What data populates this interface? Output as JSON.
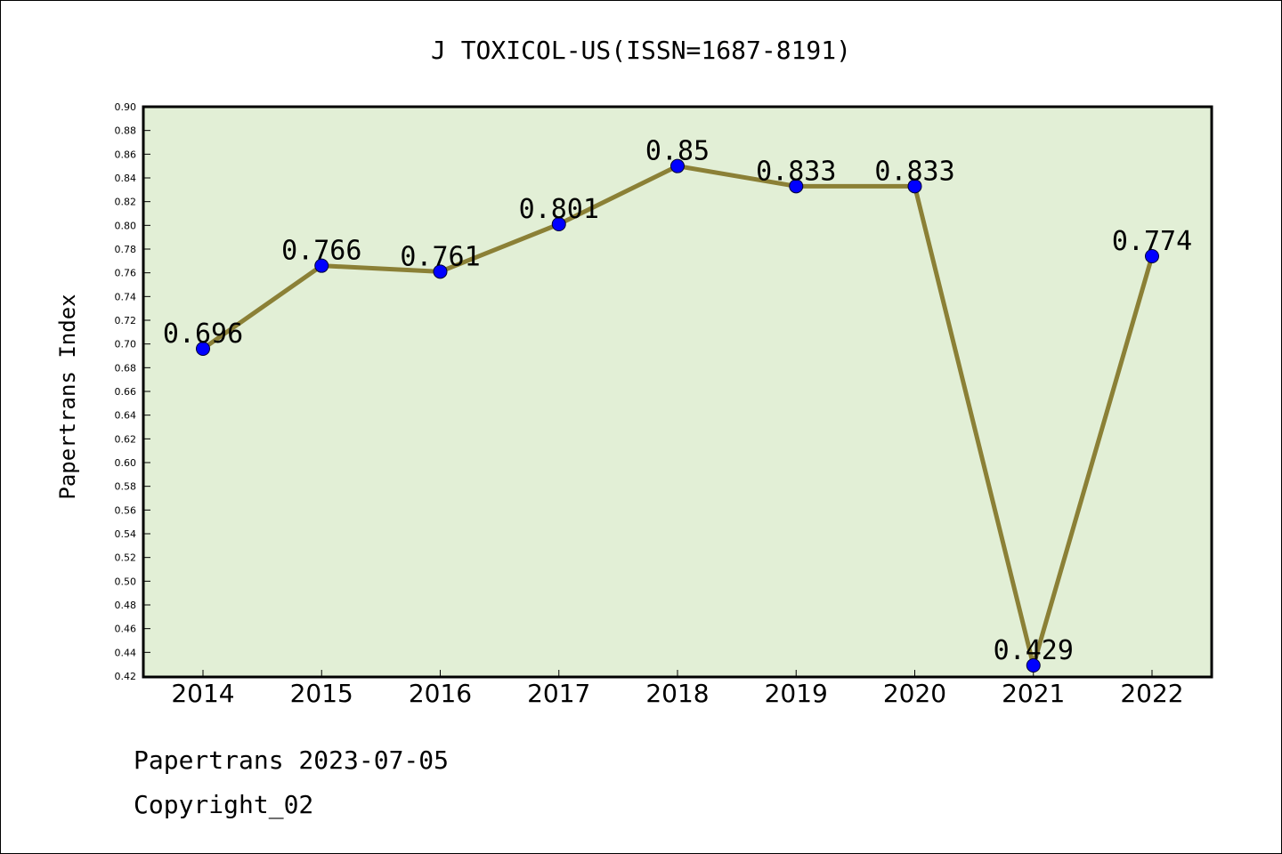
{
  "chart_data": {
    "type": "line",
    "title": "J TOXICOL-US(ISSN=1687-8191)",
    "xlabel": "",
    "ylabel": "Papertrans Index",
    "categories": [
      "2014",
      "2015",
      "2016",
      "2017",
      "2018",
      "2019",
      "2020",
      "2021",
      "2022"
    ],
    "series": [
      {
        "values": [
          0.696,
          0.766,
          0.761,
          0.801,
          0.85,
          0.833,
          0.833,
          0.429,
          0.774
        ],
        "data_labels": [
          "0.696",
          "0.766",
          "0.761",
          "0.801",
          "0.85",
          "0.833",
          "0.833",
          "0.429",
          "0.774"
        ],
        "line_color": "#8b8036",
        "marker_color": "#0000ff"
      }
    ],
    "ylim": [
      0.42,
      0.9
    ],
    "yticks": [
      "0.42",
      "0.44",
      "0.46",
      "0.48",
      "0.50",
      "0.52",
      "0.54",
      "0.56",
      "0.58",
      "0.60",
      "0.62",
      "0.64",
      "0.66",
      "0.68",
      "0.70",
      "0.72",
      "0.74",
      "0.76",
      "0.78",
      "0.80",
      "0.82",
      "0.84",
      "0.86",
      "0.88",
      "0.90"
    ],
    "plot_background": "#e2efd6",
    "grid": false,
    "legend": "none"
  },
  "footer": {
    "line1": "Papertrans 2023-07-05",
    "line2": "Copyright_02"
  }
}
